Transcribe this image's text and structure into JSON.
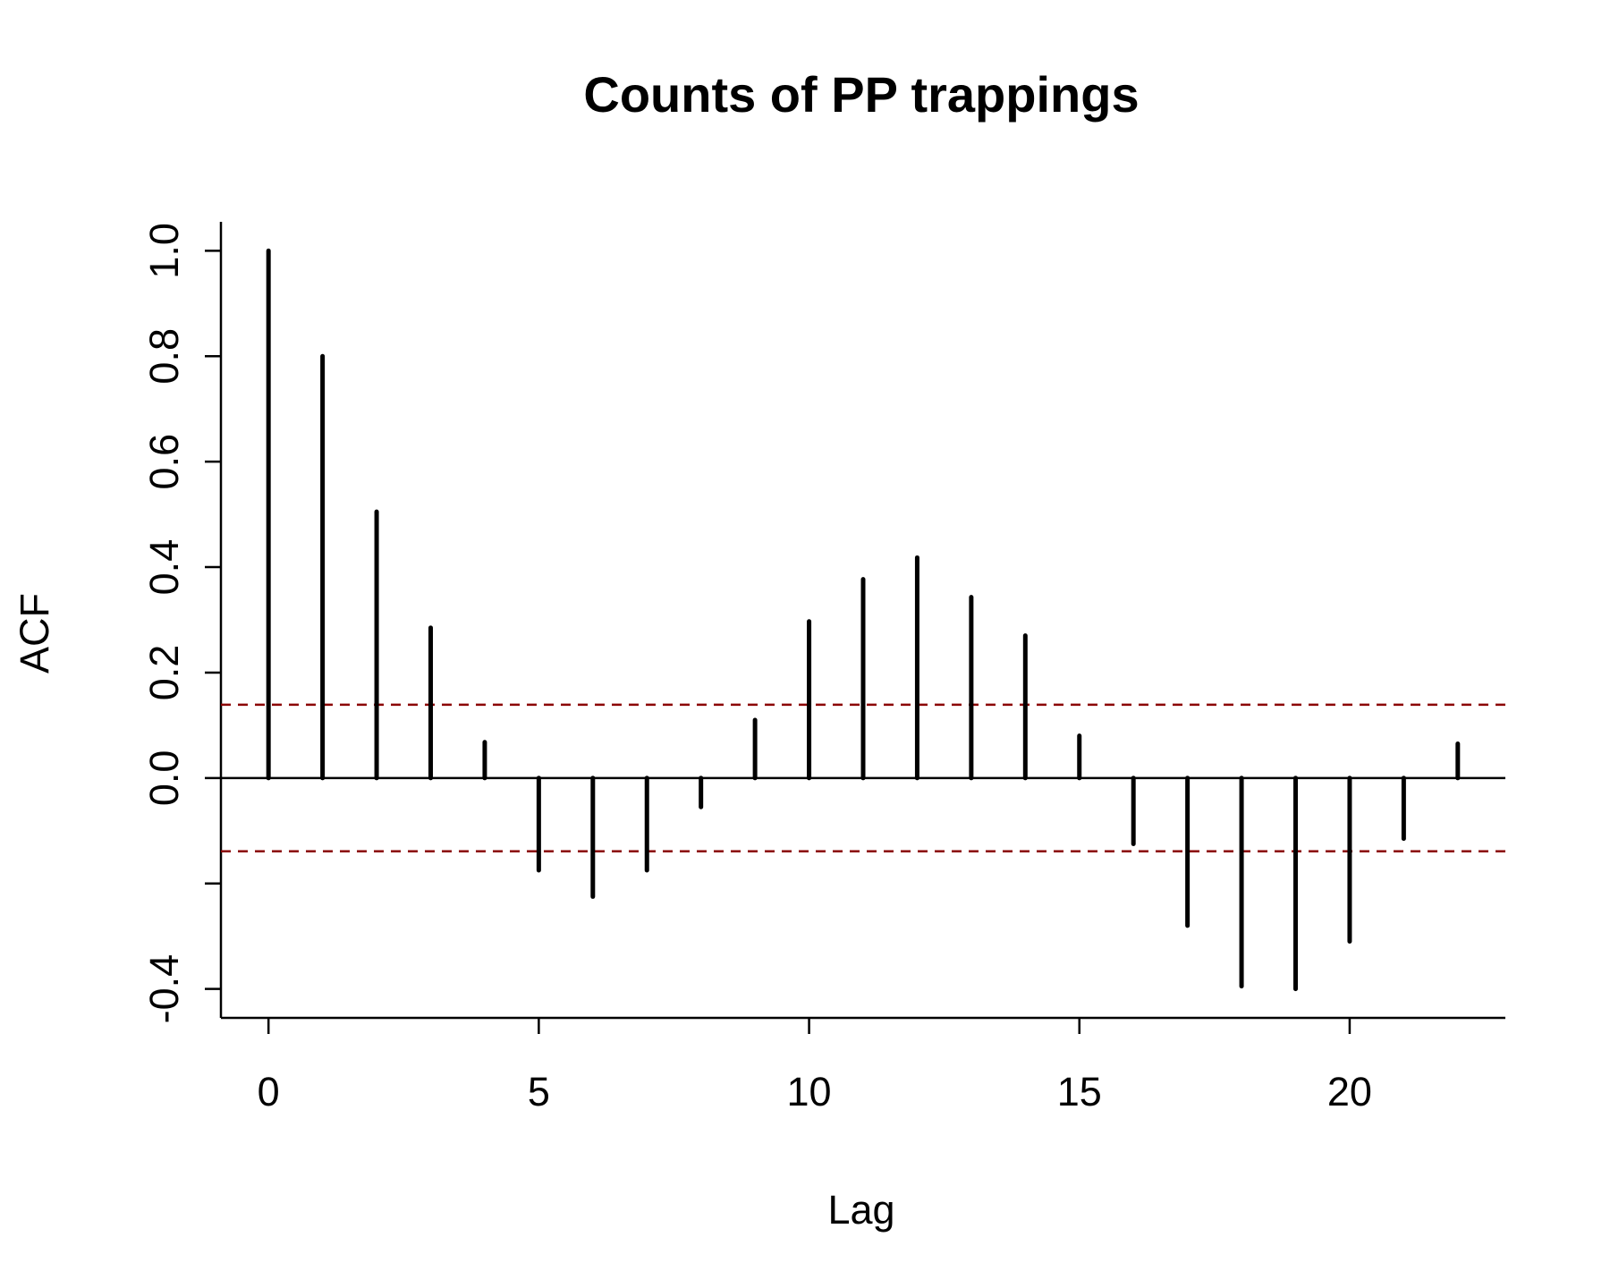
{
  "chart_data": {
    "type": "bar",
    "title": "Counts of PP trappings",
    "xlabel": "Lag",
    "ylabel": "ACF",
    "x": [
      0,
      1,
      2,
      3,
      4,
      5,
      6,
      7,
      8,
      9,
      10,
      11,
      12,
      13,
      14,
      15,
      16,
      17,
      18,
      19,
      20,
      21,
      22
    ],
    "values": [
      1.0,
      0.8,
      0.505,
      0.285,
      0.068,
      -0.175,
      -0.225,
      -0.175,
      -0.055,
      0.11,
      0.297,
      0.377,
      0.418,
      0.343,
      0.27,
      0.08,
      -0.125,
      -0.28,
      -0.395,
      -0.4,
      -0.31,
      -0.115,
      0.065
    ],
    "xticks": [
      0,
      5,
      10,
      15,
      20
    ],
    "xtick_labels": [
      "0",
      "5",
      "10",
      "15",
      "20"
    ],
    "yticks": [
      -0.4,
      -0.2,
      0.0,
      0.2,
      0.4,
      0.6,
      0.8,
      1.0
    ],
    "ytick_labels": [
      "-0.4",
      "",
      "0.0",
      "0.2",
      "0.4",
      "0.6",
      "0.8",
      "1.0"
    ],
    "xlim": [
      -0.88,
      22.88
    ],
    "ylim": [
      -0.455,
      1.055
    ],
    "confidence_bounds": [
      0.139,
      -0.139
    ],
    "colors": {
      "bars": "#000000",
      "confidence": "#8b0000"
    }
  }
}
